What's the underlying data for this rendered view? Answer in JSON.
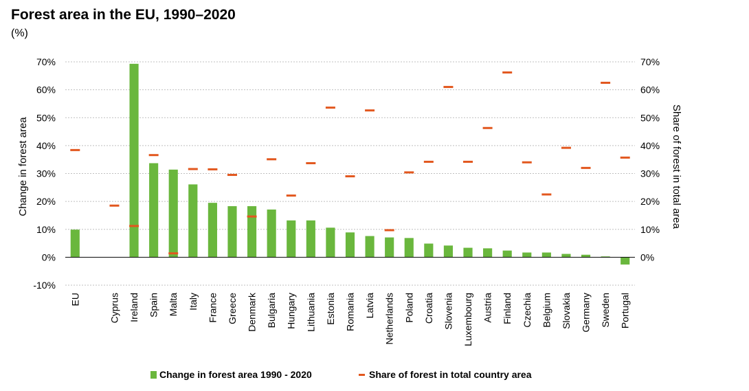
{
  "title": "Forest area in the EU, 1990–2020",
  "subtitle": "(%)",
  "colors": {
    "bar": "#6ab73d",
    "marker": "#e2571e",
    "grid": "#bfbfbf"
  },
  "chart_data": {
    "type": "bar",
    "title": "Forest area in the EU, 1990–2020",
    "subtitle": "(%)",
    "categories": [
      "EU",
      "",
      "Cyprus",
      "Ireland",
      "Spain",
      "Malta",
      "Italy",
      "France",
      "Greece",
      "Denmark",
      "Bulgaria",
      "Hungary",
      "Lithuania",
      "Estonia",
      "Romania",
      "Latvia",
      "Netherlands",
      "Poland",
      "Croatia",
      "Slovenia",
      "Luxembourg",
      "Austria",
      "Finland",
      "Czechia",
      "Belgium",
      "Slovakia",
      "Germany",
      "Sweden",
      "Portugal"
    ],
    "series": [
      {
        "name": "Change in forest area 1990 - 2020",
        "type": "bar",
        "axis": "left",
        "values": [
          9.9,
          null,
          0,
          69.3,
          33.7,
          31.4,
          26.1,
          19.5,
          18.3,
          18.3,
          17.1,
          13.2,
          13.2,
          10.6,
          8.9,
          7.6,
          7.1,
          6.9,
          4.9,
          4.2,
          3.4,
          3.2,
          2.4,
          1.7,
          1.7,
          1.2,
          0.9,
          0.3,
          -2.6
        ]
      },
      {
        "name": "Share of forest in total country area",
        "type": "marker",
        "axis": "right",
        "values": [
          38.4,
          null,
          18.5,
          11.2,
          36.6,
          1.4,
          31.6,
          31.5,
          29.5,
          14.6,
          35.1,
          22.1,
          33.7,
          53.6,
          29.0,
          52.6,
          9.7,
          30.4,
          34.2,
          61.0,
          34.2,
          46.3,
          66.2,
          34.0,
          22.5,
          39.2,
          32.0,
          62.5,
          35.7
        ]
      }
    ],
    "ylabel": "Change in forest area",
    "y2label": "Share of forest in total area",
    "ylim": [
      -10,
      70
    ],
    "y2lim": [
      0,
      70
    ],
    "yticks": [
      "-10%",
      "0%",
      "10%",
      "20%",
      "30%",
      "40%",
      "50%",
      "60%",
      "70%"
    ],
    "y2ticks": [
      "0%",
      "10%",
      "20%",
      "30%",
      "40%",
      "50%",
      "60%",
      "70%"
    ],
    "grid": true,
    "legend": "bottom-center"
  }
}
